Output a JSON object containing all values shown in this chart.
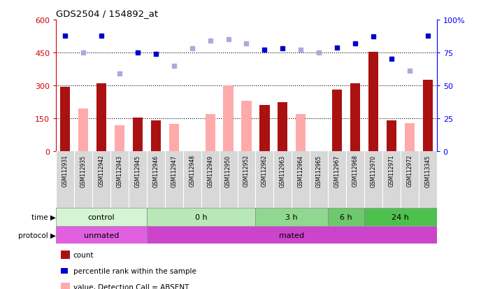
{
  "title": "GDS2504 / 154892_at",
  "samples": [
    "GSM112931",
    "GSM112935",
    "GSM112942",
    "GSM112943",
    "GSM112945",
    "GSM112946",
    "GSM112947",
    "GSM112948",
    "GSM112949",
    "GSM112950",
    "GSM112952",
    "GSM112962",
    "GSM112963",
    "GSM112964",
    "GSM112965",
    "GSM112967",
    "GSM112968",
    "GSM112970",
    "GSM112971",
    "GSM112972",
    "GSM113345"
  ],
  "left_ylim": [
    0,
    600
  ],
  "right_ylim": [
    0,
    100
  ],
  "left_yticks": [
    0,
    150,
    300,
    450,
    600
  ],
  "left_yticklabels": [
    "0",
    "150",
    "300",
    "450",
    "600"
  ],
  "right_yticks": [
    0,
    25,
    50,
    75,
    100
  ],
  "right_yticklabels": [
    "0",
    "25",
    "50",
    "75",
    "100%"
  ],
  "hlines": [
    150,
    300,
    450
  ],
  "bar_values": [
    295,
    null,
    310,
    null,
    155,
    140,
    null,
    null,
    null,
    null,
    null,
    210,
    225,
    null,
    null,
    280,
    310,
    455,
    140,
    null,
    325
  ],
  "bar_absent_values": [
    null,
    195,
    null,
    120,
    null,
    null,
    125,
    null,
    170,
    300,
    230,
    null,
    null,
    170,
    null,
    null,
    null,
    null,
    null,
    130,
    null
  ],
  "rank_present_pct": [
    88,
    null,
    88,
    null,
    75,
    74,
    null,
    null,
    null,
    null,
    null,
    77,
    78,
    null,
    null,
    79,
    82,
    87,
    70,
    null,
    88
  ],
  "rank_absent_pct": [
    null,
    75,
    null,
    59,
    null,
    null,
    65,
    78,
    84,
    85,
    82,
    null,
    null,
    77,
    75,
    null,
    null,
    null,
    null,
    61,
    null
  ],
  "time_groups": [
    {
      "label": "control",
      "start": 0,
      "end": 5
    },
    {
      "label": "0 h",
      "start": 5,
      "end": 11
    },
    {
      "label": "3 h",
      "start": 11,
      "end": 15
    },
    {
      "label": "6 h",
      "start": 15,
      "end": 17
    },
    {
      "label": "24 h",
      "start": 17,
      "end": 21
    }
  ],
  "time_colors": [
    "#d4f4d4",
    "#b8e8b8",
    "#90d890",
    "#6ec86e",
    "#4ec04e"
  ],
  "protocol_groups": [
    {
      "label": "unmated",
      "start": 0,
      "end": 5
    },
    {
      "label": "mated",
      "start": 5,
      "end": 21
    }
  ],
  "protocol_colors": [
    "#e060e0",
    "#cc44cc"
  ],
  "bar_color_present": "#aa1111",
  "bar_color_absent": "#ffaaaa",
  "dot_color_present": "#0000cc",
  "dot_color_absent": "#aaaadd",
  "bar_width": 0.55,
  "dot_size": 5
}
